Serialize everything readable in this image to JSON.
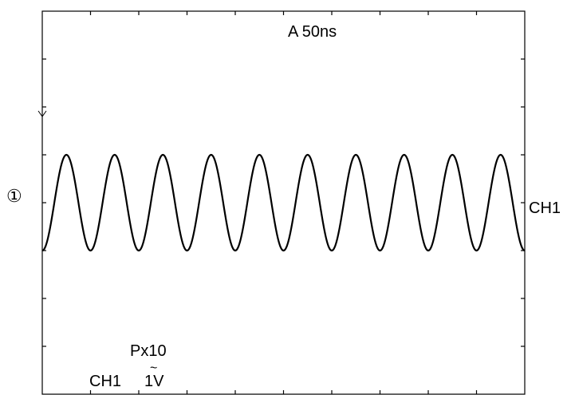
{
  "screen": {
    "timebase_label": "A 50ns",
    "channel_marker": "①",
    "channel_right_label": "CH1",
    "probe_label": "Px10",
    "channel_bottom_label": "CH1",
    "volts_label": "1V",
    "coupling_symbol": "~",
    "trigger_marker": "↓"
  },
  "waveform": {
    "type": "sine",
    "cycles": 10,
    "amplitude_divisions": 1.0,
    "center_offset_divisions": 0.0,
    "start_phase": "trough"
  },
  "colors": {
    "trace": "#000000",
    "graticule": "#000000",
    "background": "#ffffff"
  }
}
